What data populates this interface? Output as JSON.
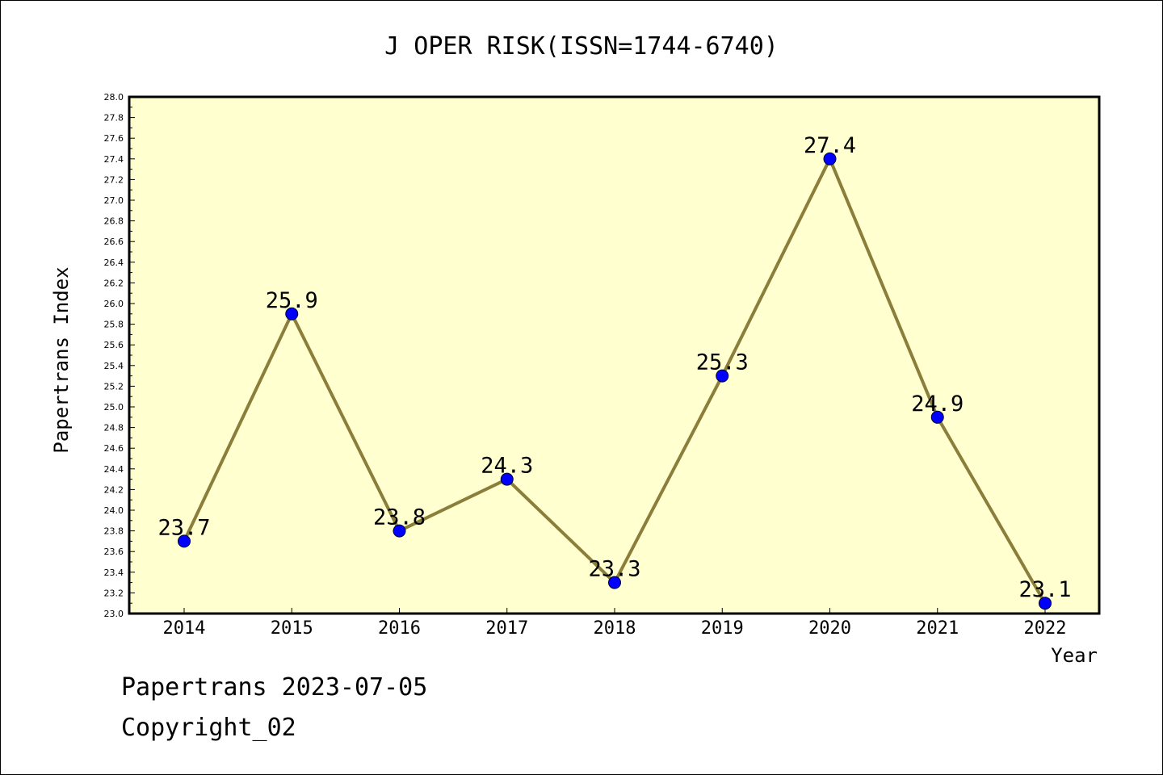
{
  "chart_data": {
    "type": "line",
    "title": "J OPER RISK(ISSN=1744-6740)",
    "xlabel": "Year",
    "ylabel": "Papertrans Index",
    "x": [
      "2014",
      "2015",
      "2016",
      "2017",
      "2018",
      "2019",
      "2020",
      "2021",
      "2022"
    ],
    "series": [
      {
        "values": [
          23.7,
          25.9,
          23.8,
          24.3,
          23.3,
          25.3,
          27.4,
          24.9,
          23.1
        ]
      }
    ],
    "data_labels": [
      "23.7",
      "25.9",
      "23.8",
      "24.3",
      "23.3",
      "25.3",
      "27.4",
      "24.9",
      "23.1"
    ],
    "ylim": [
      23.0,
      28.0
    ],
    "y_ticks": [
      "23.0",
      "23.2",
      "23.4",
      "23.6",
      "23.8",
      "24.0",
      "24.2",
      "24.4",
      "24.6",
      "24.8",
      "25.0",
      "25.2",
      "25.4",
      "25.6",
      "25.8",
      "26.0",
      "26.2",
      "26.4",
      "26.6",
      "26.8",
      "27.0",
      "27.2",
      "27.4",
      "27.6",
      "27.8",
      "28.0"
    ],
    "grid": false,
    "colors": {
      "plot_background": "#ffffd0",
      "line": "#8b7d3a",
      "marker": "#0000ff"
    }
  },
  "footer": {
    "line1": "Papertrans 2023-07-05",
    "line2": "Copyright_02"
  }
}
